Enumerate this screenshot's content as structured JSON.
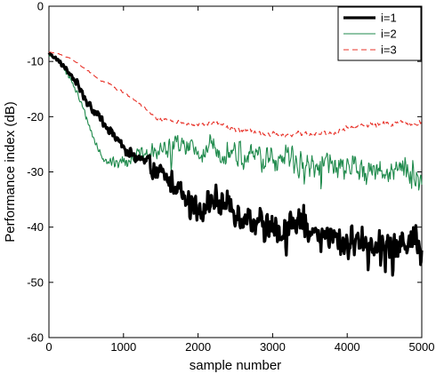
{
  "chart_data": {
    "type": "line",
    "xlabel": "sample number",
    "ylabel": "Performance index (dB)",
    "xlim": [
      0,
      5000
    ],
    "ylim": [
      -60,
      0
    ],
    "xticks": [
      0,
      1000,
      2000,
      3000,
      4000,
      5000
    ],
    "yticks": [
      0,
      -10,
      -20,
      -30,
      -40,
      -50,
      -60
    ],
    "xtick_labels": [
      "0",
      "1000",
      "2000",
      "3000",
      "4000",
      "5000"
    ],
    "ytick_labels": [
      "0",
      "-10",
      "-20",
      "-30",
      "-40",
      "-50",
      "-60"
    ],
    "grid": false,
    "legend": {
      "position": "top-right"
    },
    "series": [
      {
        "name": "i=1",
        "color": "#000000",
        "style": "solid-thick",
        "noise": [
          0.3,
          3.2
        ],
        "x": [
          0,
          100,
          200,
          300,
          400,
          500,
          600,
          700,
          800,
          900,
          1000,
          1100,
          1200,
          1300,
          1400,
          1500,
          1600,
          1700,
          1800,
          1900,
          2000,
          2100,
          2200,
          2300,
          2400,
          2500,
          2600,
          2700,
          2800,
          2900,
          3000,
          3100,
          3200,
          3300,
          3400,
          3500,
          3600,
          3700,
          3800,
          3900,
          4000,
          4100,
          4200,
          4300,
          4400,
          4500,
          4600,
          4700,
          4800,
          4900,
          5000
        ],
        "y": [
          -8.5,
          -9.5,
          -11,
          -12.5,
          -14.5,
          -17,
          -19,
          -20.5,
          -22,
          -24,
          -25.5,
          -27,
          -27.5,
          -28.5,
          -29.5,
          -30.5,
          -31.5,
          -32,
          -33.5,
          -35,
          -36.5,
          -36.5,
          -35,
          -35.5,
          -36,
          -37,
          -38,
          -38.5,
          -39,
          -40,
          -40.5,
          -41,
          -40,
          -39,
          -39,
          -40,
          -42,
          -41.5,
          -42,
          -42.5,
          -43,
          -42.5,
          -42,
          -43,
          -42.5,
          -43,
          -44.5,
          -43,
          -42,
          -41.5,
          -43
        ]
      },
      {
        "name": "i=2",
        "color": "#1f8a4c",
        "style": "solid-thin",
        "noise": [
          0.3,
          2.8
        ],
        "x": [
          0,
          100,
          200,
          300,
          400,
          500,
          600,
          700,
          800,
          900,
          1000,
          1100,
          1200,
          1300,
          1400,
          1500,
          1600,
          1700,
          1800,
          1900,
          2000,
          2100,
          2200,
          2300,
          2400,
          2500,
          2600,
          2700,
          2800,
          2900,
          3000,
          3100,
          3200,
          3300,
          3400,
          3500,
          3600,
          3700,
          3800,
          3900,
          4000,
          4100,
          4200,
          4300,
          4400,
          4500,
          4600,
          4700,
          4800,
          4900,
          5000
        ],
        "y": [
          -9,
          -9.5,
          -11,
          -13.5,
          -16.5,
          -20,
          -24,
          -27,
          -28,
          -28.5,
          -28,
          -27.5,
          -27,
          -27,
          -26.5,
          -26,
          -25.5,
          -25,
          -25.5,
          -26,
          -26.5,
          -26,
          -25.5,
          -26,
          -26,
          -26.5,
          -27,
          -27,
          -27.5,
          -28,
          -28,
          -27.5,
          -27.5,
          -28,
          -28.5,
          -28.5,
          -29,
          -28.5,
          -29,
          -29,
          -29.5,
          -29,
          -29,
          -29.5,
          -29.5,
          -30,
          -30,
          -29.5,
          -30,
          -30,
          -33
        ]
      },
      {
        "name": "i=3",
        "color": "#e8332a",
        "style": "dashed",
        "noise": [
          0.05,
          0.5
        ],
        "x": [
          0,
          100,
          200,
          300,
          400,
          500,
          600,
          700,
          800,
          900,
          1000,
          1100,
          1200,
          1300,
          1400,
          1500,
          1600,
          1700,
          1800,
          1900,
          2000,
          2100,
          2200,
          2300,
          2400,
          2500,
          2600,
          2700,
          2800,
          2900,
          3000,
          3100,
          3200,
          3300,
          3400,
          3500,
          3600,
          3700,
          3800,
          3900,
          4000,
          4100,
          4200,
          4300,
          4400,
          4500,
          4600,
          4700,
          4800,
          4900,
          5000
        ],
        "y": [
          -8.3,
          -8.5,
          -9,
          -9.5,
          -10.5,
          -11.5,
          -12.5,
          -13.5,
          -14,
          -15,
          -15.5,
          -16.5,
          -17.5,
          -18.5,
          -20,
          -20.5,
          -20.5,
          -21,
          -21,
          -21.5,
          -21.5,
          -21.5,
          -21,
          -21.5,
          -22,
          -22.5,
          -22.5,
          -22.5,
          -23,
          -23.5,
          -23,
          -23.5,
          -23.5,
          -23,
          -23,
          -23,
          -23,
          -23,
          -23,
          -22.5,
          -22,
          -22,
          -21.5,
          -21.5,
          -21.5,
          -21,
          -21.5,
          -21,
          -21.5,
          -21.5,
          -21
        ]
      }
    ]
  }
}
